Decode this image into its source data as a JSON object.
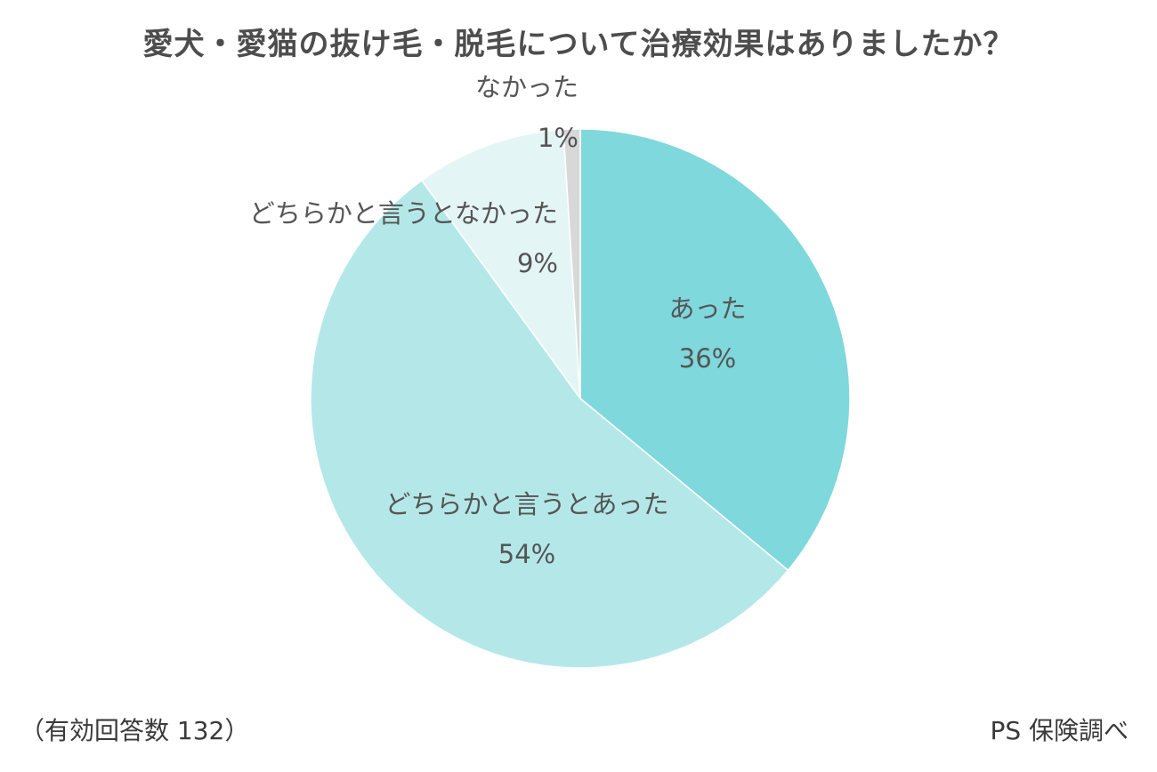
{
  "chart_data": {
    "type": "pie",
    "title": "愛犬・愛猫の抜け毛・脱毛について治療効果はありましたか？",
    "categories": [
      "あった",
      "どちらかと言うとあった",
      "どちらかと言うとなかった",
      "なかった"
    ],
    "values": [
      36,
      54,
      9,
      1
    ],
    "value_labels": [
      "36%",
      "54%",
      "9%",
      "1%"
    ],
    "colors": [
      "#7fd8dc",
      "#b4e8e8",
      "#e4f5f5",
      "#d8d8d8"
    ],
    "start_angle_deg": 0,
    "direction": "clockwise",
    "legend": "none"
  },
  "footer": {
    "sample_note": "（有効回答数 132）",
    "source": "PS 保険調べ"
  }
}
